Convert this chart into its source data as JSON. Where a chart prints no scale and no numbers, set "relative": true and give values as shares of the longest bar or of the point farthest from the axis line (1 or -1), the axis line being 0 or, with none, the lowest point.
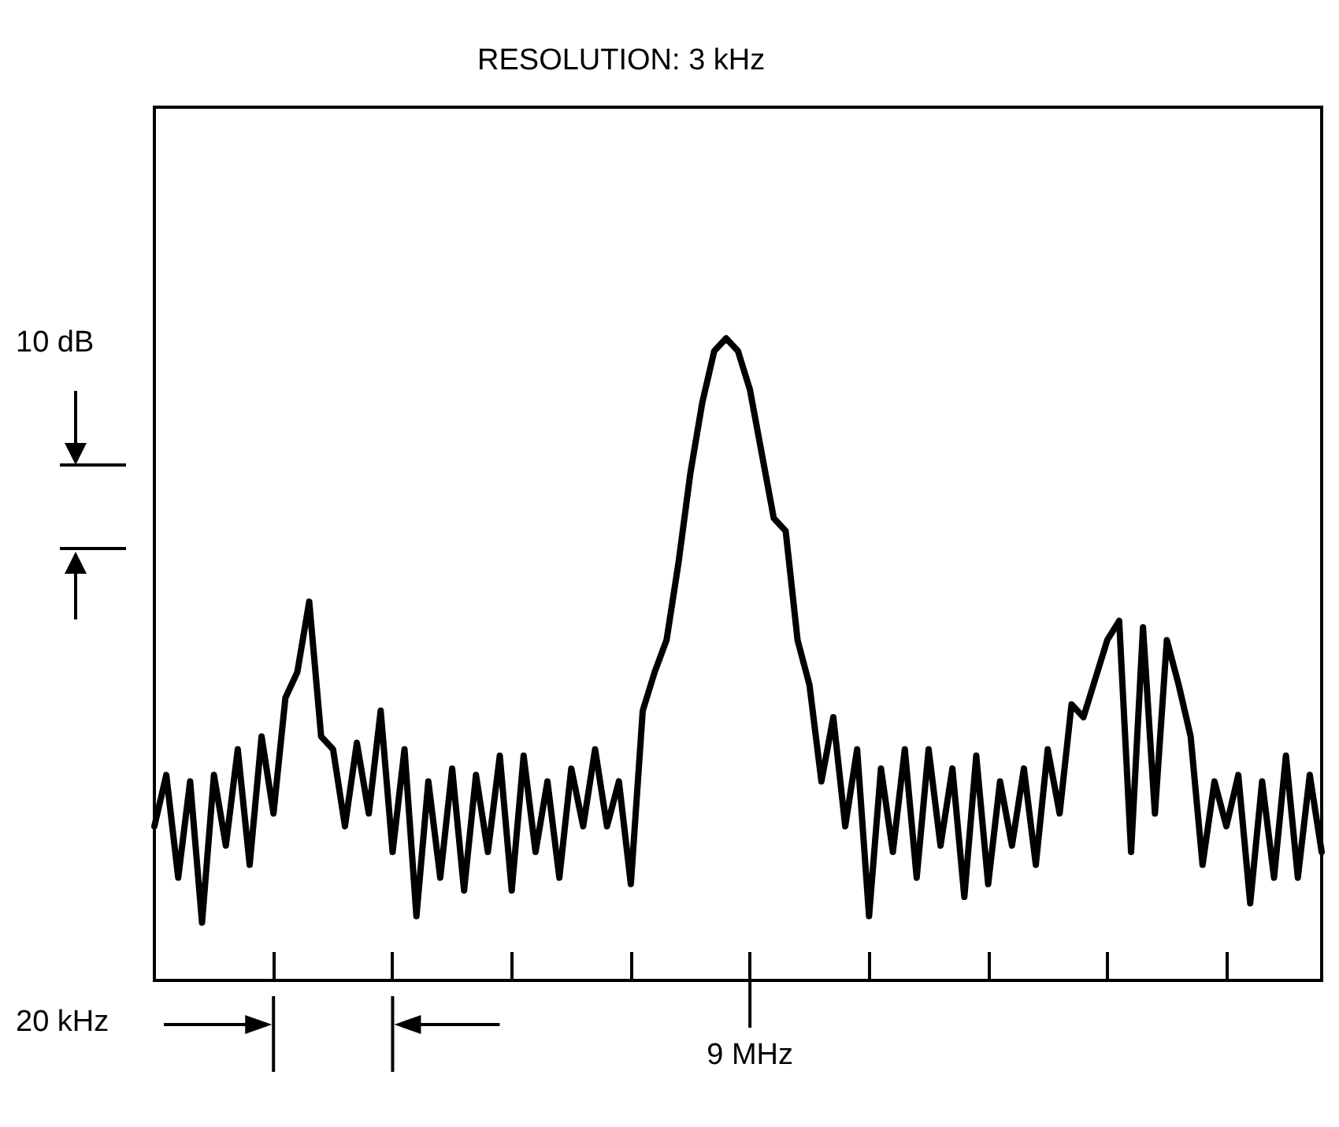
{
  "chart_data": {
    "type": "line",
    "title": "RESOLUTION: 3 kHz",
    "relative": true,
    "categories": [
      null,
      null,
      null,
      null,
      null,
      null,
      null,
      null,
      null,
      null,
      null,
      null,
      null,
      null,
      null,
      null,
      null,
      null,
      null,
      null,
      null,
      null,
      null,
      null,
      null,
      null,
      null,
      null,
      null,
      null,
      null,
      null,
      null,
      null,
      null,
      null,
      null,
      null,
      null,
      null,
      null,
      null,
      null,
      null,
      null,
      null,
      null,
      null,
      null,
      null,
      null,
      null,
      null,
      null,
      null,
      null,
      null,
      null,
      null,
      null,
      null,
      null,
      null,
      null,
      null,
      null,
      null,
      null,
      null,
      null,
      null,
      null,
      null,
      null,
      null,
      null,
      null,
      null,
      null,
      null,
      null,
      null,
      null,
      null,
      null,
      null,
      null,
      null,
      null,
      null,
      null,
      null,
      null,
      null,
      null,
      null,
      null,
      null,
      null
    ],
    "series": [
      {
        "color": "#000000",
        "values": [
          0.24,
          0.32,
          0.16,
          0.31,
          0.09,
          0.32,
          0.21,
          0.36,
          0.18,
          0.38,
          0.26,
          0.44,
          0.48,
          0.59,
          0.38,
          0.36,
          0.24,
          0.37,
          0.26,
          0.42,
          0.2,
          0.36,
          0.1,
          0.31,
          0.16,
          0.33,
          0.14,
          0.32,
          0.2,
          0.35,
          0.14,
          0.35,
          0.2,
          0.31,
          0.16,
          0.33,
          0.24,
          0.36,
          0.24,
          0.31,
          0.15,
          0.42,
          0.48,
          0.53,
          0.65,
          0.79,
          0.9,
          0.98,
          1.0,
          0.98,
          0.92,
          0.82,
          0.72,
          0.7,
          0.53,
          0.46,
          0.31,
          0.41,
          0.24,
          0.36,
          0.1,
          0.33,
          0.2,
          0.36,
          0.16,
          0.36,
          0.21,
          0.33,
          0.13,
          0.35,
          0.15,
          0.31,
          0.21,
          0.33,
          0.18,
          0.36,
          0.26,
          0.43,
          0.41,
          0.47,
          0.53,
          0.56,
          0.2,
          0.55,
          0.26,
          0.53,
          0.46,
          0.38,
          0.18,
          0.31,
          0.24,
          0.32,
          0.12,
          0.31,
          0.16,
          0.35,
          0.16,
          0.32,
          0.2
        ]
      }
    ],
    "annotations": [
      "10 dB",
      "20 kHz",
      "9 MHz"
    ],
    "marker": "none",
    "line_style": "solid"
  }
}
